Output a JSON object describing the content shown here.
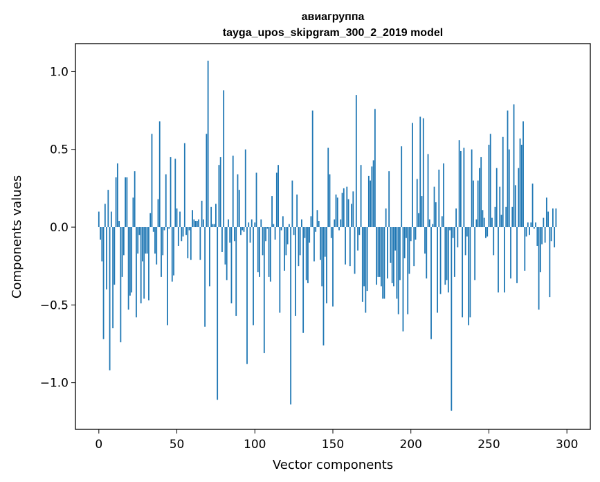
{
  "chart_data": {
    "type": "bar",
    "title_line1": "авиагруппа",
    "title_line2": "tayga_upos_skipgram_300_2_2019 model",
    "xlabel": "Vector components",
    "ylabel": "Components values",
    "xlim": [
      -15,
      315
    ],
    "ylim": [
      -1.3,
      1.18
    ],
    "x_ticks": [
      0,
      50,
      100,
      150,
      200,
      250,
      300
    ],
    "x_tick_labels": [
      "0",
      "50",
      "100",
      "150",
      "200",
      "250",
      "300"
    ],
    "y_ticks": [
      -1.0,
      -0.5,
      0.0,
      0.5,
      1.0
    ],
    "y_tick_labels": [
      "−1.0",
      "−0.5",
      "0.0",
      "0.5",
      "1.0"
    ],
    "bar_color": "#1f77b4",
    "values": [
      0.1,
      -0.08,
      -0.22,
      -0.72,
      0.15,
      -0.4,
      0.24,
      -0.92,
      0.1,
      -0.65,
      -0.37,
      0.32,
      0.41,
      0.04,
      -0.74,
      -0.32,
      -0.18,
      0.32,
      0.32,
      -0.53,
      -0.44,
      -0.42,
      0.19,
      0.36,
      -0.58,
      -0.17,
      -0.05,
      -0.49,
      -0.22,
      -0.46,
      -0.17,
      -0.17,
      -0.47,
      0.09,
      0.6,
      -0.03,
      -0.17,
      -0.24,
      0.18,
      0.68,
      -0.32,
      -0.18,
      -0.02,
      0.34,
      -0.63,
      -0.01,
      0.45,
      -0.35,
      -0.31,
      0.44,
      0.12,
      -0.12,
      0.1,
      -0.09,
      -0.06,
      0.54,
      -0.05,
      -0.2,
      -0.02,
      -0.21,
      0.11,
      0.05,
      0.04,
      0.04,
      0.05,
      -0.21,
      0.17,
      0.05,
      -0.64,
      0.6,
      1.07,
      -0.38,
      0.13,
      0.02,
      0.02,
      0.15,
      -1.11,
      0.4,
      0.45,
      -0.16,
      0.88,
      -0.24,
      -0.34,
      0.05,
      -0.1,
      -0.49,
      0.46,
      -0.09,
      -0.57,
      0.34,
      0.24,
      -0.05,
      -0.02,
      -0.03,
      0.5,
      -0.88,
      0.03,
      -0.1,
      0.05,
      -0.63,
      0.03,
      0.35,
      -0.29,
      -0.32,
      0.05,
      -0.18,
      -0.81,
      -0.09,
      -0.01,
      -0.32,
      -0.35,
      0.2,
      0.02,
      -0.08,
      0.35,
      0.4,
      -0.55,
      -0.02,
      0.07,
      -0.28,
      -0.18,
      -0.11,
      0.02,
      -1.14,
      0.3,
      -0.05,
      -0.57,
      0.21,
      -0.25,
      -0.18,
      0.05,
      -0.68,
      -0.07,
      -0.34,
      -0.36,
      -0.1,
      0.07,
      0.75,
      -0.22,
      -0.03,
      0.11,
      0.04,
      -0.21,
      -0.38,
      -0.76,
      -0.19,
      -0.49,
      0.51,
      0.34,
      -0.07,
      -0.51,
      0.05,
      0.21,
      0.19,
      -0.02,
      0.05,
      0.22,
      0.25,
      -0.24,
      0.26,
      0.18,
      -0.25,
      0.15,
      0.23,
      -0.3,
      0.85,
      -0.15,
      -0.05,
      0.4,
      -0.48,
      -0.38,
      -0.55,
      -0.41,
      0.33,
      0.3,
      0.39,
      0.43,
      0.76,
      -0.37,
      -0.32,
      -0.32,
      -0.38,
      -0.46,
      -0.46,
      0.12,
      -0.33,
      0.36,
      -0.23,
      -0.36,
      -0.38,
      -0.15,
      -0.46,
      -0.56,
      -0.34,
      0.52,
      -0.67,
      -0.2,
      -0.07,
      -0.56,
      -0.3,
      -0.09,
      0.67,
      -0.25,
      -0.08,
      0.31,
      0.09,
      0.71,
      0.2,
      0.7,
      -0.17,
      -0.33,
      0.47,
      0.05,
      -0.72,
      0.02,
      0.26,
      0.16,
      -0.55,
      0.37,
      -0.43,
      0.07,
      0.41,
      -0.37,
      -0.34,
      -0.42,
      -0.02,
      -1.18,
      -0.07,
      -0.32,
      0.12,
      -0.13,
      0.56,
      0.49,
      -0.58,
      0.51,
      -0.18,
      -0.06,
      -0.63,
      -0.58,
      0.5,
      0.3,
      -0.34,
      0.05,
      0.3,
      0.38,
      0.45,
      0.11,
      0.06,
      -0.07,
      -0.06,
      0.53,
      0.6,
      0.06,
      -0.18,
      0.13,
      0.38,
      -0.42,
      0.26,
      0.08,
      0.58,
      -0.42,
      0.13,
      0.75,
      0.5,
      -0.33,
      0.13,
      0.79,
      0.27,
      -0.36,
      0.38,
      0.57,
      0.53,
      0.68,
      -0.28,
      -0.06,
      0.03,
      -0.05,
      0.03,
      0.28,
      -0.01,
      0.03,
      -0.12,
      -0.53,
      -0.29,
      -0.11,
      0.06,
      -0.1,
      0.19,
      0.1,
      -0.45,
      -0.09,
      0.12,
      -0.13,
      0.12
    ]
  }
}
